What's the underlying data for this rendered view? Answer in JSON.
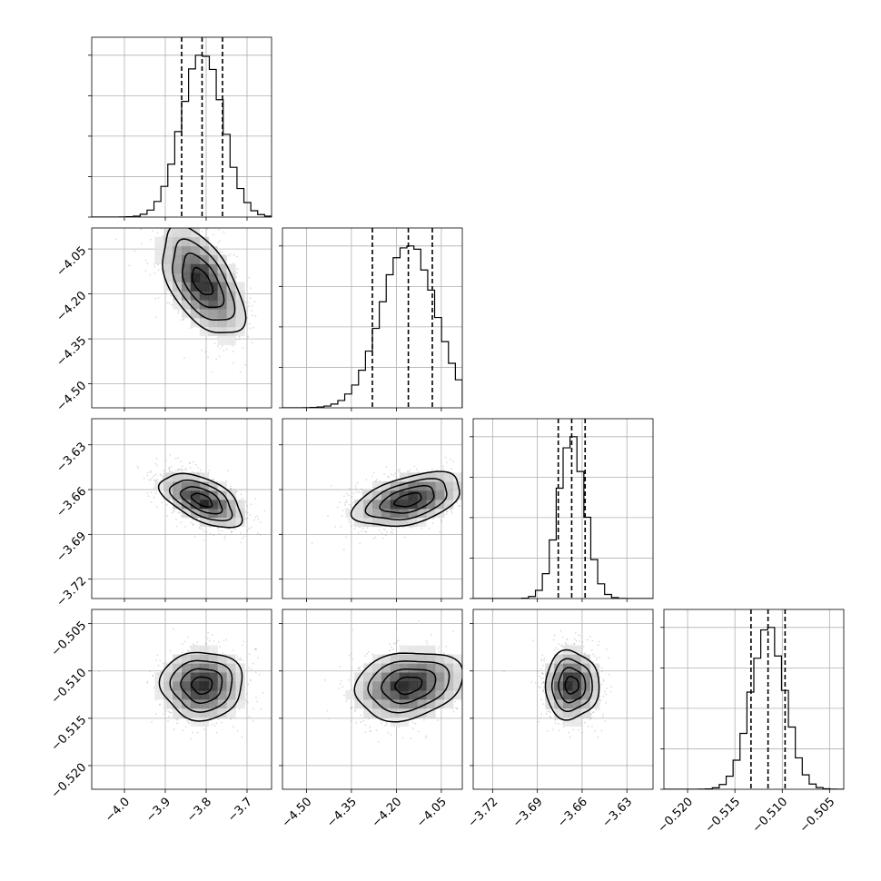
{
  "chart_data": {
    "type": "corner",
    "parameters": [
      {
        "median": -3.81,
        "q16": -3.86,
        "q84": -3.76,
        "sd": 0.05,
        "xlim": [
          -4.08,
          -3.64
        ],
        "ticks": [
          -4.0,
          -3.9,
          -3.8,
          -3.7
        ],
        "tick_labels": [
          "−4.0",
          "−3.9",
          "−3.8",
          "−3.7"
        ]
      },
      {
        "median": -4.16,
        "q16": -4.28,
        "q84": -4.08,
        "sd": 0.09,
        "xlim": [
          -4.58,
          -3.98
        ],
        "ticks": [
          -4.5,
          -4.35,
          -4.2,
          -4.05
        ],
        "tick_labels": [
          "−4.50",
          "−4.35",
          "−4.20",
          "−4.05"
        ]
      },
      {
        "median": -3.667,
        "q16": -3.676,
        "q84": -3.658,
        "sd": 0.009,
        "xlim": [
          -3.733,
          -3.6125
        ],
        "ticks": [
          -3.72,
          -3.69,
          -3.66,
          -3.63
        ],
        "tick_labels": [
          "−3.72",
          "−3.69",
          "−3.66",
          "−3.63"
        ]
      },
      {
        "median": -0.5115,
        "q16": -0.5133,
        "q84": -0.5097,
        "sd": 0.0018,
        "xlim": [
          -0.5225,
          -0.5035
        ],
        "ticks": [
          -0.52,
          -0.515,
          -0.51,
          -0.505
        ],
        "tick_labels": [
          "−0.520",
          "−0.515",
          "−0.510",
          "−0.505"
        ]
      }
    ],
    "correlations": [
      {
        "pair": [
          0,
          1
        ],
        "rho": -0.55
      },
      {
        "pair": [
          0,
          2
        ],
        "rho": -0.55
      },
      {
        "pair": [
          1,
          2
        ],
        "rho": 0.45
      },
      {
        "pair": [
          0,
          3
        ],
        "rho": 0.0
      },
      {
        "pair": [
          1,
          3
        ],
        "rho": 0.2
      },
      {
        "pair": [
          2,
          3
        ],
        "rho": 0.0
      }
    ],
    "quantile_lines": [
      0.16,
      0.5,
      0.84
    ],
    "grid": true,
    "colors": {
      "frame": "#000000",
      "grid": "#b0b0b0",
      "density": "#000000",
      "points": "#9a9a9a"
    }
  }
}
